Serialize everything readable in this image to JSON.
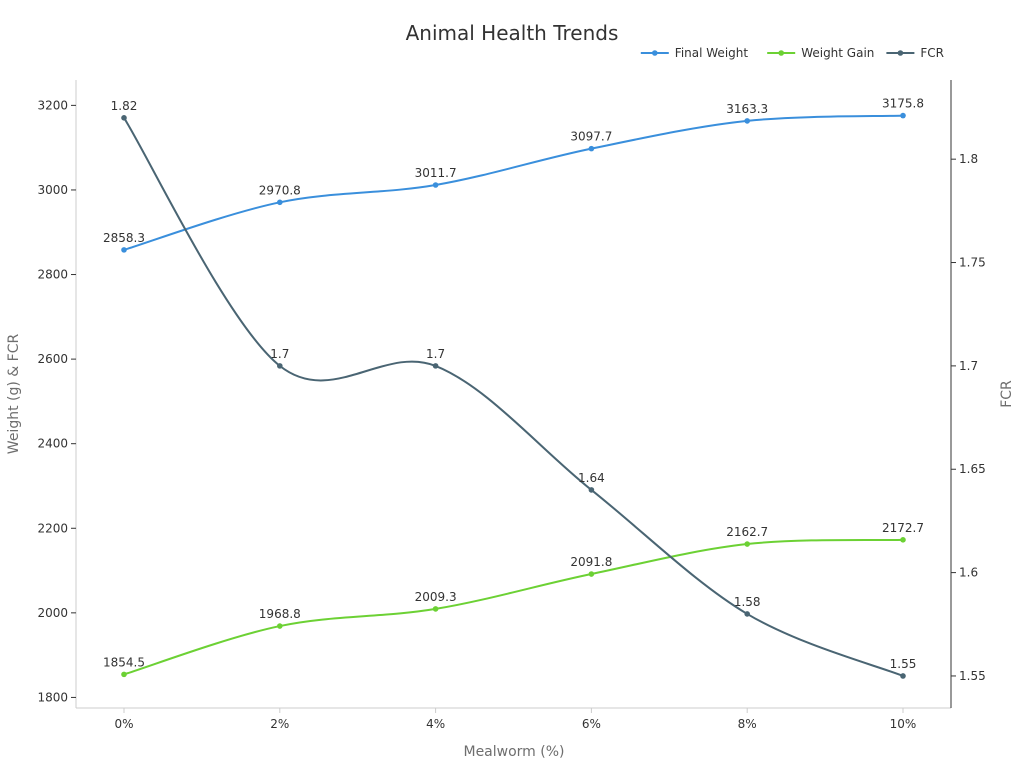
{
  "chart_data": {
    "type": "line",
    "title": "Animal Health Trends",
    "xlabel": "Mealworm (%)",
    "ylabel_left": "Weight (g) & FCR",
    "ylabel_right": "FCR",
    "categories": [
      "0%",
      "2%",
      "4%",
      "6%",
      "8%",
      "10%"
    ],
    "y_left": {
      "ticks": [
        1800,
        2000,
        2200,
        2400,
        2600,
        2800,
        3000,
        3200
      ],
      "range": [
        1775,
        3260
      ]
    },
    "y_right": {
      "ticks": [
        1.55,
        1.6,
        1.65,
        1.7,
        1.75,
        1.8
      ],
      "range": [
        1.5345,
        1.8383
      ]
    },
    "legend_position": "top-right",
    "grid": false,
    "series": [
      {
        "name": "Final Weight",
        "axis": "left",
        "color": "#3a8fdc",
        "values": [
          2858.3,
          2970.8,
          3011.7,
          3097.7,
          3163.3,
          3175.8
        ],
        "labels": [
          "2858.3",
          "2970.8",
          "3011.7",
          "3097.7",
          "3163.3",
          "3175.8"
        ]
      },
      {
        "name": "Weight Gain",
        "axis": "left",
        "color": "#6cd134",
        "values": [
          1854.5,
          1968.8,
          2009.3,
          2091.8,
          2162.7,
          2172.7
        ],
        "labels": [
          "1854.5",
          "1968.8",
          "2009.3",
          "2091.8",
          "2162.7",
          "2172.7"
        ]
      },
      {
        "name": "FCR",
        "axis": "right",
        "color": "#4a6573",
        "values": [
          1.82,
          1.7,
          1.7,
          1.64,
          1.58,
          1.55
        ],
        "labels": [
          "1.82",
          "1.7",
          "1.7",
          "1.64",
          "1.58",
          "1.55"
        ]
      }
    ]
  }
}
